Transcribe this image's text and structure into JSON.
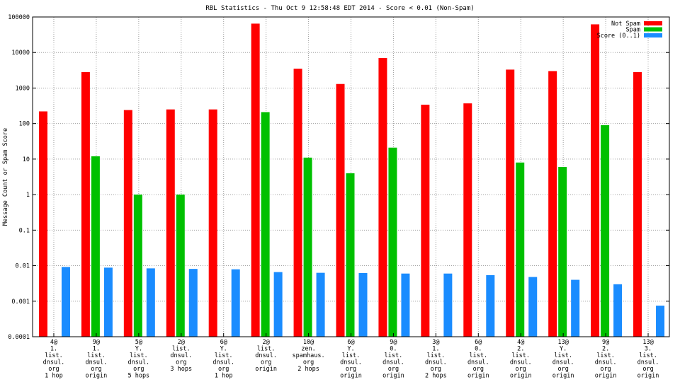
{
  "chart_data": {
    "type": "bar",
    "title": "RBL Statistics - Thu Oct  9 12:58:48 EDT 2014 - Score < 0.01 (Non-Spam)",
    "xlabel": "",
    "ylabel": "Message Count or Spam Score",
    "yscale": "log",
    "ylim": [
      0.0001,
      100000
    ],
    "grid": true,
    "legend_position": "top-right",
    "y_ticks": [
      "0.0001",
      "0.001",
      "0.01",
      "0.1",
      "1",
      "10",
      "100",
      "1000",
      "10000",
      "100000"
    ],
    "categories": [
      [
        "4@",
        "1.",
        "list.",
        "dnsul.",
        "org",
        "1 hop"
      ],
      [
        "9@",
        "1.",
        "list.",
        "dnsul.",
        "org",
        "origin"
      ],
      [
        "5@",
        "Y.",
        "list.",
        "dnsul.",
        "org",
        "5 hops"
      ],
      [
        "2@",
        "list.",
        "dnsul.",
        "org",
        "3 hops"
      ],
      [
        "6@",
        "Y.",
        "list.",
        "dnsul.",
        "org",
        "1 hop"
      ],
      [
        "2@",
        "list.",
        "dnsul.",
        "org",
        "origin"
      ],
      [
        "10@",
        "zen.",
        "spamhaus.",
        "org",
        "2 hops"
      ],
      [
        "6@",
        "Y.",
        "list.",
        "dnsul.",
        "org",
        "origin"
      ],
      [
        "9@",
        "0.",
        "list.",
        "dnsul.",
        "org",
        "origin"
      ],
      [
        "3@",
        "1.",
        "list.",
        "dnsul.",
        "org",
        "2 hops"
      ],
      [
        "6@",
        "0.",
        "list.",
        "dnsul.",
        "org",
        "origin"
      ],
      [
        "4@",
        "2.",
        "list.",
        "dnsul.",
        "org",
        "origin"
      ],
      [
        "13@",
        "Y.",
        "list.",
        "dnsul.",
        "org",
        "origin"
      ],
      [
        "9@",
        "2.",
        "list.",
        "dnsul.",
        "org",
        "origin"
      ],
      [
        "13@",
        "3.",
        "list.",
        "dnsul.",
        "org",
        "origin"
      ]
    ],
    "series": [
      {
        "name": "Not Spam",
        "color": "#ff0000",
        "values": [
          220,
          2800,
          240,
          250,
          250,
          65000,
          3500,
          1300,
          7000,
          340,
          370,
          3300,
          3000,
          62000,
          2800
        ]
      },
      {
        "name": "Spam",
        "color": "#00c000",
        "values": [
          null,
          12,
          1,
          1,
          null,
          210,
          11,
          4,
          21,
          null,
          null,
          8,
          6,
          90,
          null
        ]
      },
      {
        "name": "Score (0..1)",
        "color": "#1a8cff",
        "values": [
          0.0092,
          0.0088,
          0.0084,
          0.0081,
          0.0079,
          0.0066,
          0.0063,
          0.0062,
          0.006,
          0.006,
          0.0054,
          0.0048,
          0.004,
          0.003,
          0.00075
        ]
      }
    ]
  }
}
